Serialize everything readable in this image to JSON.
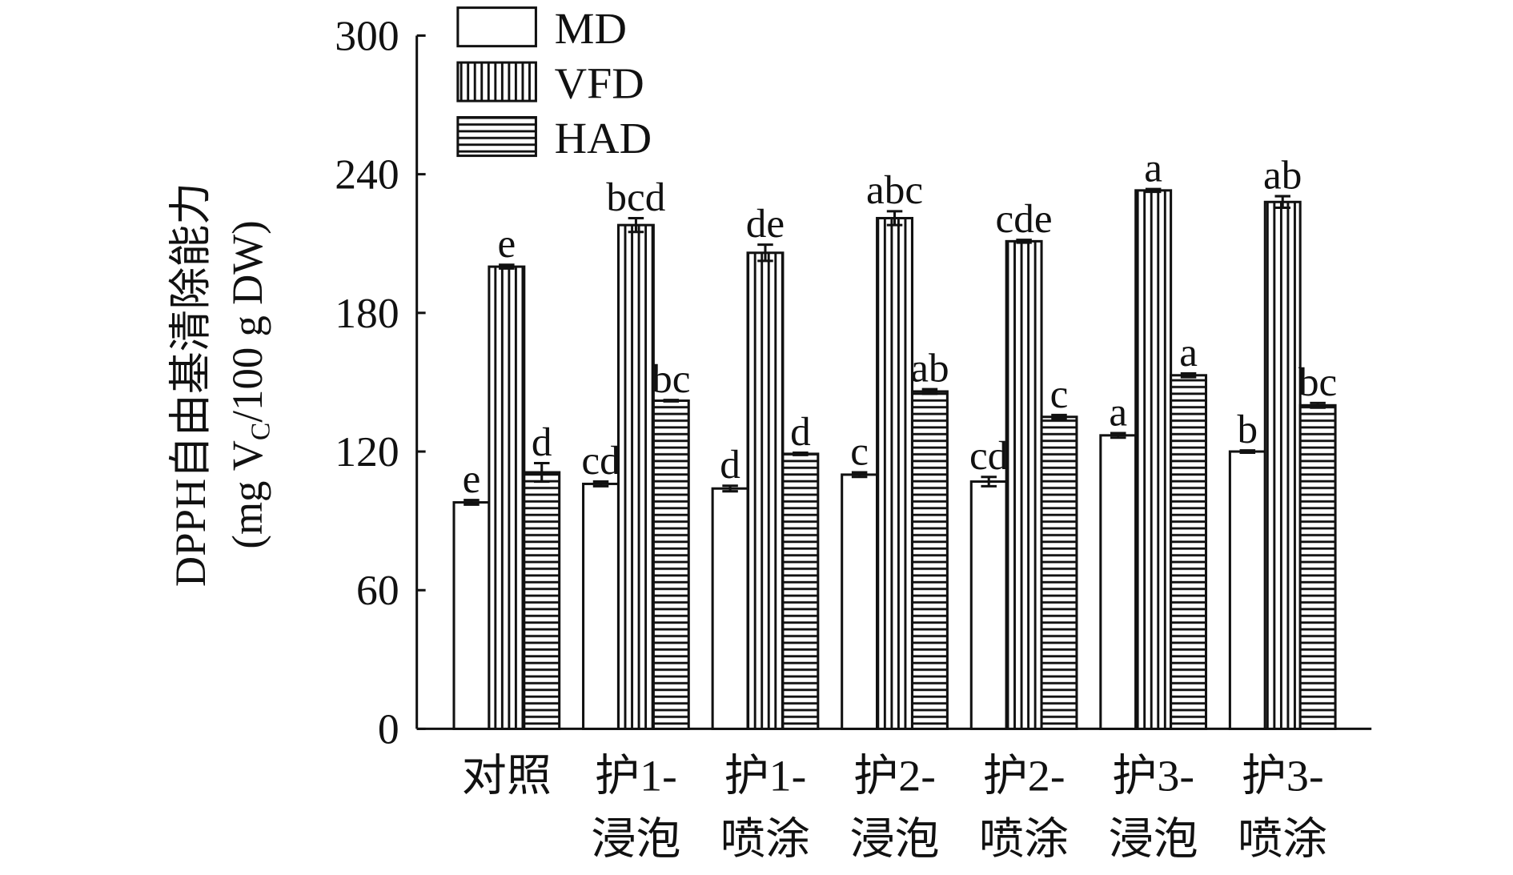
{
  "chart_data": {
    "type": "bar",
    "title": "",
    "xlabel": "",
    "ylabel_line1": "DPPH自由基清除能力",
    "ylabel_line2_prefix": "(mg V",
    "ylabel_line2_sub": "C",
    "ylabel_line2_suffix": "/100 g DW)",
    "ylim": [
      0,
      300
    ],
    "yticks": [
      "0",
      "60",
      "120",
      "180",
      "240",
      "300"
    ],
    "categories": [
      [
        "对照",
        ""
      ],
      [
        "护1-",
        "浸泡"
      ],
      [
        "护1-",
        "喷涂"
      ],
      [
        "护2-",
        "浸泡"
      ],
      [
        "护2-",
        "喷涂"
      ],
      [
        "护3-",
        "浸泡"
      ],
      [
        "护3-",
        "喷涂"
      ]
    ],
    "legend_position": "top-left",
    "series": [
      {
        "name": "MD",
        "pattern": "plain",
        "values": [
          98,
          106,
          104,
          110,
          107,
          127,
          120
        ],
        "errors": [
          1,
          1,
          1.2,
          1,
          2,
          1,
          0.5
        ],
        "letters": [
          "e",
          "cd",
          "d",
          "c",
          "cd",
          "a",
          "b"
        ]
      },
      {
        "name": "VFD",
        "pattern": "vertical",
        "values": [
          200,
          218,
          206,
          221,
          211,
          233,
          228
        ],
        "errors": [
          0.8,
          3,
          3.5,
          3,
          0.6,
          0.6,
          2.5
        ],
        "letters": [
          "e",
          "bcd",
          "de",
          "abc",
          "cde",
          "a",
          "ab"
        ]
      },
      {
        "name": "HAD",
        "pattern": "horizontal",
        "values": [
          111,
          142,
          119,
          146,
          135,
          153,
          140
        ],
        "errors": [
          4,
          0.3,
          0.5,
          1,
          0.8,
          0.8,
          1
        ],
        "letters": [
          "d",
          "bc",
          "d",
          "ab",
          "c",
          "a",
          "bc"
        ]
      }
    ]
  }
}
